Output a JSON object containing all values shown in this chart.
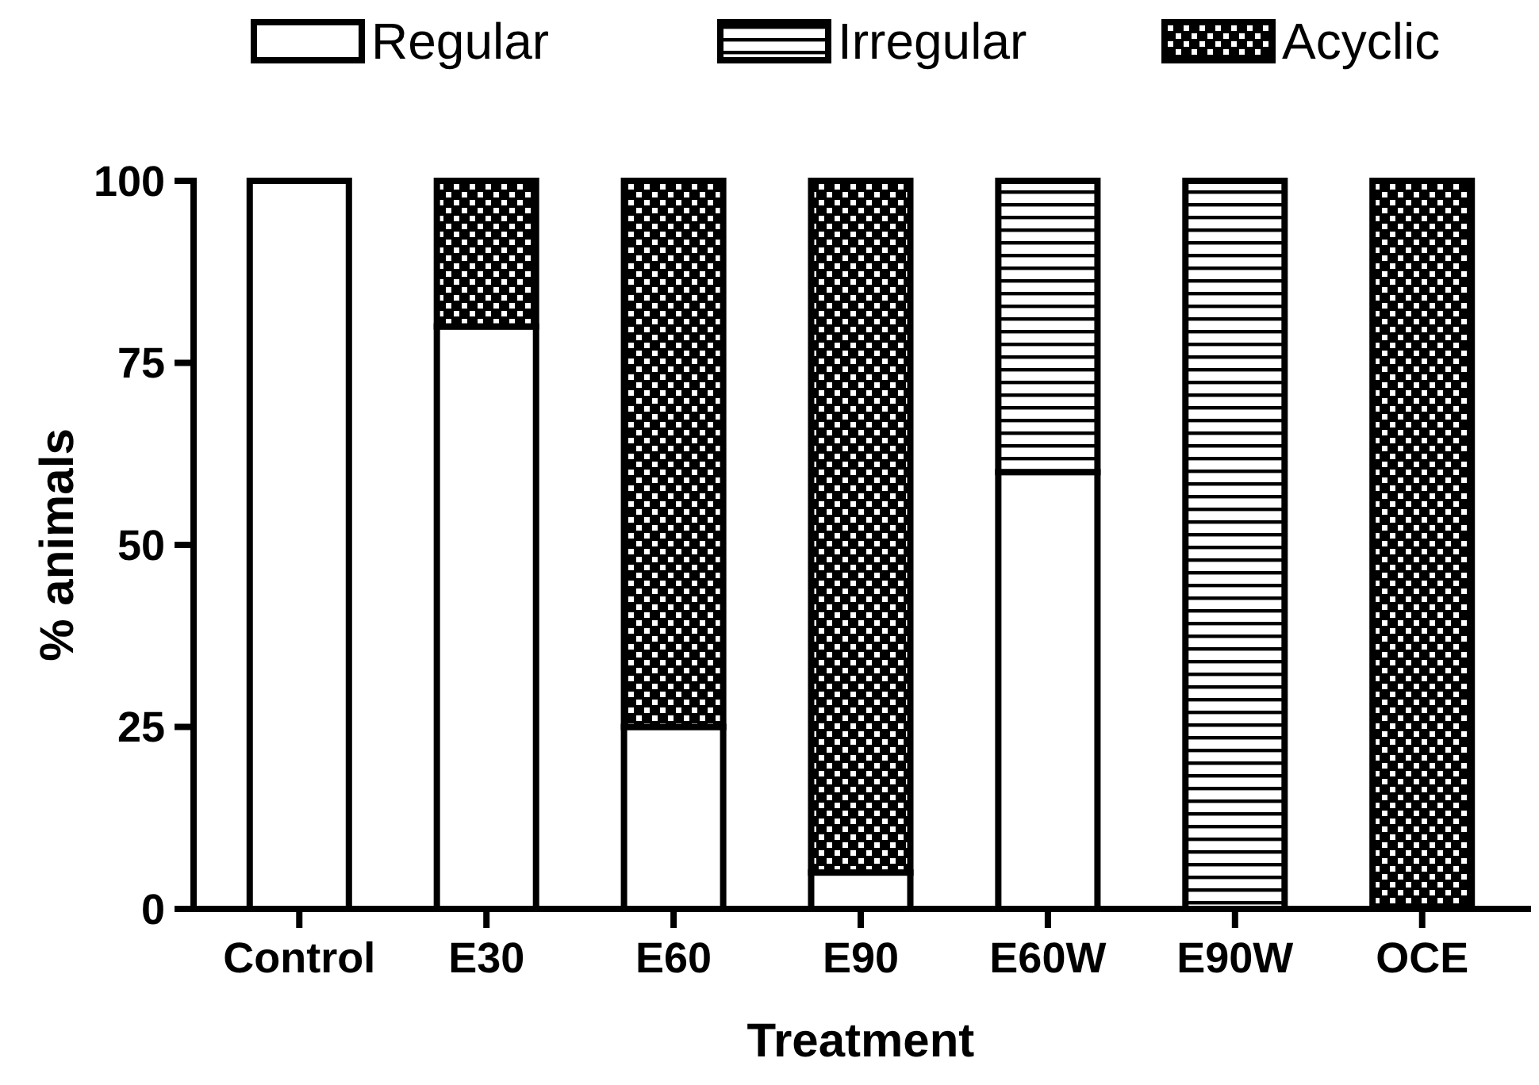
{
  "chart_data": {
    "type": "bar",
    "stacked": true,
    "xlabel": "Treatment",
    "ylabel": "% animals",
    "categories": [
      "Control",
      "E30",
      "E60",
      "E90",
      "E60W",
      "E90W",
      "OCE"
    ],
    "series": [
      {
        "name": "Regular",
        "color": "#ffffff",
        "values": [
          100,
          80,
          25,
          5,
          60,
          0,
          0
        ]
      },
      {
        "name": "Irregular",
        "color": "#000000",
        "values": [
          0,
          0,
          0,
          0,
          40,
          100,
          0
        ]
      },
      {
        "name": "Acyclic",
        "color": "#000000",
        "values": [
          0,
          20,
          75,
          95,
          0,
          0,
          100
        ]
      }
    ],
    "ylim": [
      0,
      100
    ],
    "yticks": [
      0,
      25,
      50,
      75,
      100
    ],
    "grid": false,
    "legend": "top"
  }
}
